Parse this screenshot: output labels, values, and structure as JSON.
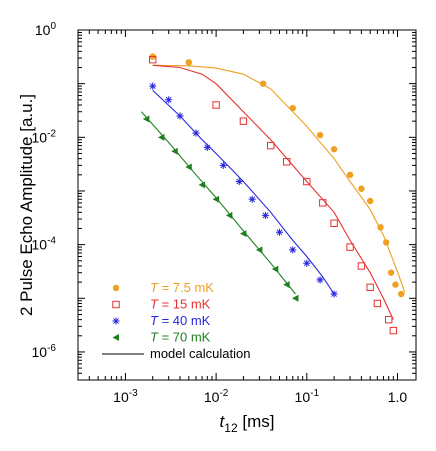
{
  "chart_data": {
    "type": "scatter",
    "x_scale": "log",
    "y_scale": "log",
    "xlim": [
      0.0003,
      1.6
    ],
    "ylim": [
      3e-07,
      1.0
    ],
    "grid": false,
    "legend_placement": "bottom-left",
    "ylabel": "2 Pulse Echo Amplitude [a.u.]",
    "xlabel": {
      "var": "t",
      "sub": "12",
      "unit": " [ms]"
    },
    "x_ticks": [
      {
        "value": 0.001,
        "base": "10",
        "exp": "-3"
      },
      {
        "value": 0.01,
        "base": "10",
        "exp": "-2"
      },
      {
        "value": 0.1,
        "base": "10",
        "exp": "-1"
      },
      {
        "value": 1,
        "base": "10",
        "exp": "0",
        "plain": "10"
      }
    ],
    "y_ticks": [
      {
        "value": 1,
        "base": "10",
        "exp": "0"
      },
      {
        "value": 0.01,
        "base": "10",
        "exp": "-2"
      },
      {
        "value": 0.0001,
        "base": "10",
        "exp": "-4"
      },
      {
        "value": 1e-06,
        "base": "10",
        "exp": "-6"
      }
    ],
    "x_tick_labels_plain": {
      "1": "1.0"
    },
    "series": [
      {
        "legend_var": "T",
        "legend_rest": " = 7.5 mK",
        "color": "#f0a020",
        "marker": "circle",
        "points": [
          [
            0.002,
            0.32
          ],
          [
            0.005,
            0.25
          ],
          [
            0.033,
            0.1
          ],
          [
            0.07,
            0.035
          ],
          [
            0.14,
            0.011
          ],
          [
            0.2,
            0.006
          ],
          [
            0.3,
            0.002
          ],
          [
            0.4,
            0.0011
          ],
          [
            0.5,
            0.00065
          ],
          [
            0.65,
            0.00021
          ],
          [
            0.75,
            0.00011
          ],
          [
            0.85,
            3e-05
          ],
          [
            0.95,
            1.8e-05
          ],
          [
            1.1,
            1.2e-05
          ]
        ],
        "model": [
          [
            0.002,
            0.22
          ],
          [
            0.005,
            0.215
          ],
          [
            0.01,
            0.195
          ],
          [
            0.02,
            0.15
          ],
          [
            0.04,
            0.08
          ],
          [
            0.07,
            0.03
          ],
          [
            0.1,
            0.016
          ],
          [
            0.2,
            0.004
          ],
          [
            0.3,
            0.0015
          ],
          [
            0.5,
            0.00045
          ],
          [
            0.7,
            0.00015
          ],
          [
            0.9,
            5e-05
          ],
          [
            1.05,
            2.5e-05
          ],
          [
            1.2,
            1.3e-05
          ]
        ]
      },
      {
        "legend_var": "T",
        "legend_rest": " = 15 mK",
        "color": "#e83030",
        "marker": "square-open",
        "points": [
          [
            0.002,
            0.28
          ],
          [
            0.01,
            0.04
          ],
          [
            0.02,
            0.02
          ],
          [
            0.04,
            0.007
          ],
          [
            0.06,
            0.0035
          ],
          [
            0.1,
            0.0015
          ],
          [
            0.15,
            0.0006
          ],
          [
            0.2,
            0.00025
          ],
          [
            0.3,
            9e-05
          ],
          [
            0.4,
            4e-05
          ],
          [
            0.5,
            1.6e-05
          ],
          [
            0.6,
            8e-06
          ],
          [
            0.8,
            4e-06
          ],
          [
            0.9,
            2.5e-06
          ]
        ],
        "model": [
          [
            0.002,
            0.22
          ],
          [
            0.004,
            0.2
          ],
          [
            0.007,
            0.15
          ],
          [
            0.01,
            0.1
          ],
          [
            0.02,
            0.03
          ],
          [
            0.04,
            0.009
          ],
          [
            0.07,
            0.003
          ],
          [
            0.1,
            0.0015
          ],
          [
            0.2,
            0.0004
          ],
          [
            0.3,
            0.00012
          ],
          [
            0.5,
            3e-05
          ],
          [
            0.7,
            1e-05
          ],
          [
            0.9,
            4e-06
          ]
        ]
      },
      {
        "legend_var": "T",
        "legend_rest": " = 40 mK",
        "color": "#2828e0",
        "marker": "asterisk",
        "points": [
          [
            0.002,
            0.09
          ],
          [
            0.003,
            0.05
          ],
          [
            0.004,
            0.025
          ],
          [
            0.006,
            0.012
          ],
          [
            0.008,
            0.0065
          ],
          [
            0.012,
            0.003
          ],
          [
            0.018,
            0.0015
          ],
          [
            0.025,
            0.0007
          ],
          [
            0.035,
            0.00035
          ],
          [
            0.05,
            0.00017
          ],
          [
            0.07,
            8e-05
          ],
          [
            0.1,
            4.5e-05
          ],
          [
            0.14,
            2.2e-05
          ],
          [
            0.2,
            1.2e-05
          ]
        ],
        "model": [
          [
            0.002,
            0.075
          ],
          [
            0.004,
            0.025
          ],
          [
            0.007,
            0.009
          ],
          [
            0.01,
            0.005
          ],
          [
            0.02,
            0.0015
          ],
          [
            0.04,
            0.0004
          ],
          [
            0.07,
            0.00012
          ],
          [
            0.1,
            6e-05
          ],
          [
            0.15,
            2.5e-05
          ],
          [
            0.2,
            1.2e-05
          ]
        ]
      },
      {
        "legend_var": "T",
        "legend_rest": " = 70 mK",
        "color": "#208020",
        "marker": "triangle-left",
        "points": [
          [
            0.0017,
            0.022
          ],
          [
            0.0025,
            0.01
          ],
          [
            0.0035,
            0.0055
          ],
          [
            0.005,
            0.0028
          ],
          [
            0.007,
            0.0013
          ],
          [
            0.01,
            0.0007
          ],
          [
            0.014,
            0.00035
          ],
          [
            0.02,
            0.00016
          ],
          [
            0.03,
            8e-05
          ],
          [
            0.045,
            3.5e-05
          ],
          [
            0.06,
            1.8e-05
          ],
          [
            0.075,
            1e-05
          ]
        ],
        "model": [
          [
            0.0015,
            0.03
          ],
          [
            0.003,
            0.008
          ],
          [
            0.006,
            0.002
          ],
          [
            0.01,
            0.00075
          ],
          [
            0.02,
            0.00018
          ],
          [
            0.04,
            4.5e-05
          ],
          [
            0.075,
            1.2e-05
          ]
        ]
      }
    ],
    "model_legend": "model calculation"
  }
}
